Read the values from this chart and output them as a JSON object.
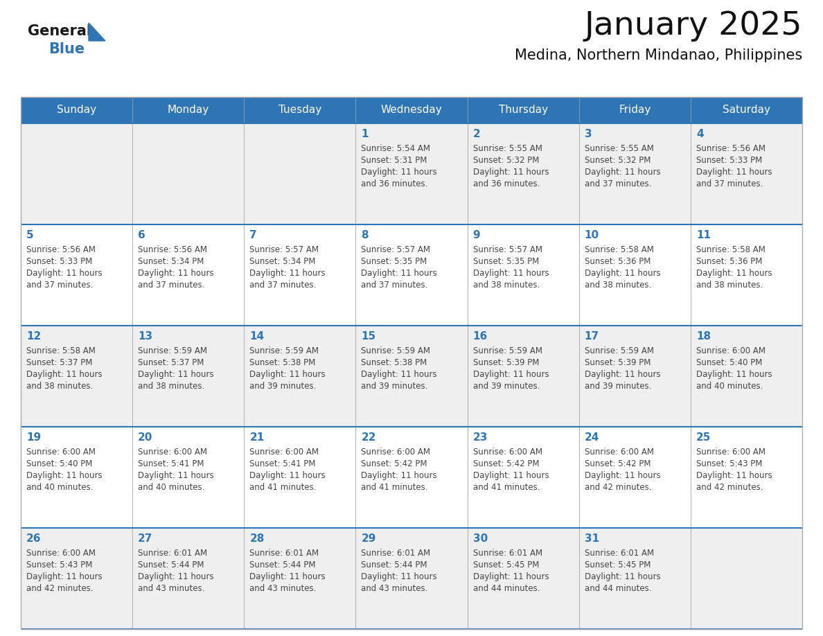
{
  "title": "January 2025",
  "subtitle": "Medina, Northern Mindanao, Philippines",
  "header_bg": "#2E75B6",
  "header_text_color": "#FFFFFF",
  "day_names": [
    "Sunday",
    "Monday",
    "Tuesday",
    "Wednesday",
    "Thursday",
    "Friday",
    "Saturday"
  ],
  "row_bg_odd": "#EFEFEF",
  "row_bg_even": "#FFFFFF",
  "cell_border_color": "#AAAAAA",
  "row_divider_color": "#2E75B6",
  "day_number_color": "#2E75B6",
  "text_color": "#444444",
  "logo_general_color": "#1A1A1A",
  "logo_blue_color": "#2E75B6",
  "calendar": [
    [
      null,
      null,
      null,
      {
        "day": 1,
        "sunrise": "5:54 AM",
        "sunset": "5:31 PM",
        "daylight": "11 hours and 36 minutes."
      },
      {
        "day": 2,
        "sunrise": "5:55 AM",
        "sunset": "5:32 PM",
        "daylight": "11 hours and 36 minutes."
      },
      {
        "day": 3,
        "sunrise": "5:55 AM",
        "sunset": "5:32 PM",
        "daylight": "11 hours and 37 minutes."
      },
      {
        "day": 4,
        "sunrise": "5:56 AM",
        "sunset": "5:33 PM",
        "daylight": "11 hours and 37 minutes."
      }
    ],
    [
      {
        "day": 5,
        "sunrise": "5:56 AM",
        "sunset": "5:33 PM",
        "daylight": "11 hours and 37 minutes."
      },
      {
        "day": 6,
        "sunrise": "5:56 AM",
        "sunset": "5:34 PM",
        "daylight": "11 hours and 37 minutes."
      },
      {
        "day": 7,
        "sunrise": "5:57 AM",
        "sunset": "5:34 PM",
        "daylight": "11 hours and 37 minutes."
      },
      {
        "day": 8,
        "sunrise": "5:57 AM",
        "sunset": "5:35 PM",
        "daylight": "11 hours and 37 minutes."
      },
      {
        "day": 9,
        "sunrise": "5:57 AM",
        "sunset": "5:35 PM",
        "daylight": "11 hours and 38 minutes."
      },
      {
        "day": 10,
        "sunrise": "5:58 AM",
        "sunset": "5:36 PM",
        "daylight": "11 hours and 38 minutes."
      },
      {
        "day": 11,
        "sunrise": "5:58 AM",
        "sunset": "5:36 PM",
        "daylight": "11 hours and 38 minutes."
      }
    ],
    [
      {
        "day": 12,
        "sunrise": "5:58 AM",
        "sunset": "5:37 PM",
        "daylight": "11 hours and 38 minutes."
      },
      {
        "day": 13,
        "sunrise": "5:59 AM",
        "sunset": "5:37 PM",
        "daylight": "11 hours and 38 minutes."
      },
      {
        "day": 14,
        "sunrise": "5:59 AM",
        "sunset": "5:38 PM",
        "daylight": "11 hours and 39 minutes."
      },
      {
        "day": 15,
        "sunrise": "5:59 AM",
        "sunset": "5:38 PM",
        "daylight": "11 hours and 39 minutes."
      },
      {
        "day": 16,
        "sunrise": "5:59 AM",
        "sunset": "5:39 PM",
        "daylight": "11 hours and 39 minutes."
      },
      {
        "day": 17,
        "sunrise": "5:59 AM",
        "sunset": "5:39 PM",
        "daylight": "11 hours and 39 minutes."
      },
      {
        "day": 18,
        "sunrise": "6:00 AM",
        "sunset": "5:40 PM",
        "daylight": "11 hours and 40 minutes."
      }
    ],
    [
      {
        "day": 19,
        "sunrise": "6:00 AM",
        "sunset": "5:40 PM",
        "daylight": "11 hours and 40 minutes."
      },
      {
        "day": 20,
        "sunrise": "6:00 AM",
        "sunset": "5:41 PM",
        "daylight": "11 hours and 40 minutes."
      },
      {
        "day": 21,
        "sunrise": "6:00 AM",
        "sunset": "5:41 PM",
        "daylight": "11 hours and 41 minutes."
      },
      {
        "day": 22,
        "sunrise": "6:00 AM",
        "sunset": "5:42 PM",
        "daylight": "11 hours and 41 minutes."
      },
      {
        "day": 23,
        "sunrise": "6:00 AM",
        "sunset": "5:42 PM",
        "daylight": "11 hours and 41 minutes."
      },
      {
        "day": 24,
        "sunrise": "6:00 AM",
        "sunset": "5:42 PM",
        "daylight": "11 hours and 42 minutes."
      },
      {
        "day": 25,
        "sunrise": "6:00 AM",
        "sunset": "5:43 PM",
        "daylight": "11 hours and 42 minutes."
      }
    ],
    [
      {
        "day": 26,
        "sunrise": "6:00 AM",
        "sunset": "5:43 PM",
        "daylight": "11 hours and 42 minutes."
      },
      {
        "day": 27,
        "sunrise": "6:01 AM",
        "sunset": "5:44 PM",
        "daylight": "11 hours and 43 minutes."
      },
      {
        "day": 28,
        "sunrise": "6:01 AM",
        "sunset": "5:44 PM",
        "daylight": "11 hours and 43 minutes."
      },
      {
        "day": 29,
        "sunrise": "6:01 AM",
        "sunset": "5:44 PM",
        "daylight": "11 hours and 43 minutes."
      },
      {
        "day": 30,
        "sunrise": "6:01 AM",
        "sunset": "5:45 PM",
        "daylight": "11 hours and 44 minutes."
      },
      {
        "day": 31,
        "sunrise": "6:01 AM",
        "sunset": "5:45 PM",
        "daylight": "11 hours and 44 minutes."
      },
      null
    ]
  ]
}
